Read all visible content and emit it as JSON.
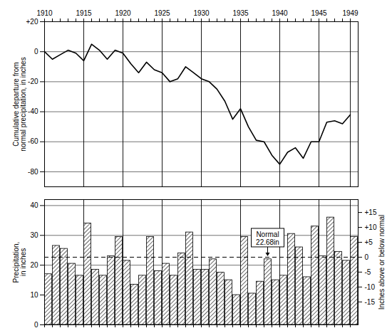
{
  "chart_data": [
    {
      "type": "line",
      "y_label": "Cumulative departure from\nnormal precipitation, in inches",
      "x": [
        1910,
        1911,
        1912,
        1913,
        1914,
        1915,
        1916,
        1917,
        1918,
        1919,
        1920,
        1921,
        1922,
        1923,
        1924,
        1925,
        1926,
        1927,
        1928,
        1929,
        1930,
        1931,
        1932,
        1933,
        1934,
        1935,
        1936,
        1937,
        1938,
        1939,
        1940,
        1941,
        1942,
        1943,
        1944,
        1945,
        1946,
        1947,
        1948,
        1949
      ],
      "values": [
        0,
        -5,
        -2,
        1,
        -1,
        -6,
        5,
        1,
        -5,
        1,
        -1,
        -8,
        -14,
        -7,
        -12,
        -14,
        -20,
        -18,
        -10,
        -14,
        -18,
        -20,
        -25,
        -33,
        -45,
        -38,
        -50,
        -59,
        -60,
        -69,
        -75,
        -67,
        -64,
        -71,
        -60,
        -60,
        -47,
        -46,
        -48,
        -42
      ],
      "color": "#000000",
      "xlim": [
        1910,
        1950
      ],
      "xticks": [
        1910,
        1915,
        1920,
        1925,
        1930,
        1935,
        1940,
        1945,
        1949
      ],
      "ylim": [
        -90,
        20
      ],
      "yticks": [
        {
          "value": 20,
          "label": "+20"
        },
        0,
        -20,
        -40,
        -60,
        -80
      ],
      "grid": true
    },
    {
      "type": "bar",
      "y_label": "Precipitation,\nin inches",
      "y2_label": "Inches above or below normal",
      "x": [
        1910,
        1911,
        1912,
        1913,
        1914,
        1915,
        1916,
        1917,
        1918,
        1919,
        1920,
        1921,
        1922,
        1923,
        1924,
        1925,
        1926,
        1927,
        1928,
        1929,
        1930,
        1931,
        1932,
        1933,
        1934,
        1935,
        1936,
        1937,
        1938,
        1939,
        1940,
        1941,
        1942,
        1943,
        1944,
        1945,
        1946,
        1947,
        1948,
        1949
      ],
      "values": [
        17,
        26.5,
        25.5,
        20.5,
        16.5,
        34,
        18.5,
        16.5,
        23,
        29.5,
        21.5,
        13.5,
        16.5,
        29.5,
        18,
        20.5,
        16.5,
        24,
        31,
        18.5,
        18.5,
        22,
        17.5,
        15,
        10,
        29.5,
        10.5,
        14.5,
        22,
        15,
        16.5,
        30.5,
        26,
        16,
        33,
        23,
        36,
        24.5,
        21.5,
        29.5
      ],
      "color": "#000000",
      "xlim": [
        1910,
        1950
      ],
      "xticks": [
        1910,
        1915,
        1920,
        1925,
        1930,
        1935,
        1940,
        1945,
        1949
      ],
      "ylim": [
        0,
        42
      ],
      "yticks": [
        0,
        10,
        20,
        30,
        40
      ],
      "y2lim": [
        -22.68,
        19.32
      ],
      "y2ticks": [
        {
          "value": 15,
          "label": "+15"
        },
        {
          "value": 10,
          "label": "+10"
        },
        {
          "value": 5,
          "label": "+5"
        },
        0,
        -5,
        -10,
        -15
      ],
      "normal": 22.68,
      "annotations": [
        {
          "text": "Normal\n22.68in",
          "x": 1938.5,
          "y": 22.68
        }
      ],
      "tick_labels": "y",
      "grid": true
    }
  ]
}
